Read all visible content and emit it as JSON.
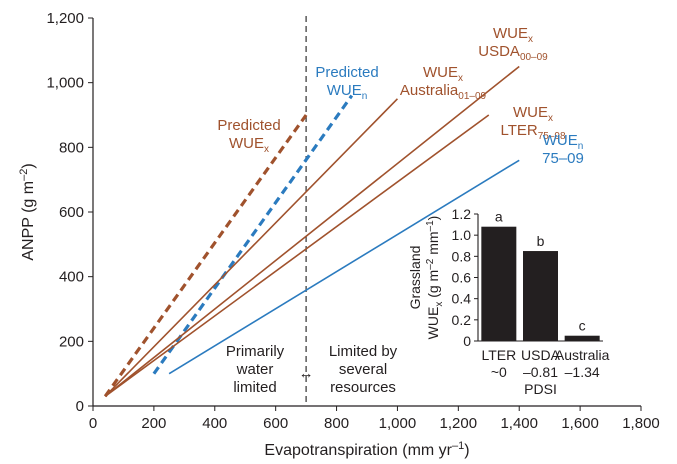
{
  "chart_data": [
    {
      "type": "line",
      "xlabel": "Evapotranspiration (mm yr",
      "xlabel_sup": "–1",
      "xlabel_end": ")",
      "ylabel": "ANPP (g m",
      "ylabel_sup": "–2",
      "ylabel_end": ")",
      "xlim": [
        0,
        1800
      ],
      "ylim": [
        0,
        1200
      ],
      "x_ticks": [
        0,
        200,
        400,
        600,
        800,
        1000,
        1200,
        1400,
        1600,
        1800
      ],
      "x_tick_labels": [
        "0",
        "200",
        "400",
        "600",
        "800",
        "1,000",
        "1,200",
        "1,400",
        "1,600",
        "1,800"
      ],
      "y_ticks": [
        0,
        200,
        400,
        600,
        800,
        1000,
        1200
      ],
      "y_tick_labels": [
        "0",
        "200",
        "400",
        "600",
        "800",
        "1,000",
        "1,200"
      ],
      "grid": false,
      "divider": {
        "x": 700,
        "left_label": [
          "Primarily",
          "water",
          "limited"
        ],
        "right_label": [
          "Limited by",
          "several",
          "resources"
        ],
        "arrow": "↔"
      },
      "series": [
        {
          "id": "pred-wuex",
          "style": "dashed",
          "color": "#a0522d",
          "points": [
            [
              40,
              30
            ],
            [
              700,
              900
            ]
          ]
        },
        {
          "id": "pred-wuen",
          "style": "dashed",
          "color": "#2b7bbf",
          "points": [
            [
              200,
              100
            ],
            [
              850,
              960
            ]
          ]
        },
        {
          "id": "aus",
          "style": "solid",
          "color": "#a0522d",
          "points": [
            [
              40,
              30
            ],
            [
              1000,
              950
            ]
          ]
        },
        {
          "id": "usda",
          "style": "solid",
          "color": "#a0522d",
          "points": [
            [
              40,
              30
            ],
            [
              1400,
              1050
            ]
          ]
        },
        {
          "id": "lter",
          "style": "solid",
          "color": "#a0522d",
          "points": [
            [
              40,
              30
            ],
            [
              1300,
              900
            ]
          ]
        },
        {
          "id": "wuen",
          "style": "solid",
          "color": "#2b7bbf",
          "points": [
            [
              250,
              100
            ],
            [
              1400,
              760
            ]
          ]
        }
      ],
      "annotations": [
        {
          "id": "pred-wuex-label",
          "color": "#a0522d",
          "lines": [
            {
              "text": "Predicted"
            },
            {
              "text": "WUE",
              "sub": "x"
            }
          ]
        },
        {
          "id": "pred-wuen-label",
          "color": "#2b7bbf",
          "lines": [
            {
              "text": "Predicted"
            },
            {
              "text": "WUE",
              "sub": "n"
            }
          ]
        },
        {
          "id": "aus-label",
          "color": "#a0522d",
          "lines": [
            {
              "text": "WUE",
              "sub": "x"
            },
            {
              "text": "Australia",
              "sub": "01–09"
            }
          ]
        },
        {
          "id": "usda-label",
          "color": "#a0522d",
          "lines": [
            {
              "text": "WUE",
              "sub": "x"
            },
            {
              "text": "USDA",
              "sub": "00–09"
            }
          ]
        },
        {
          "id": "lter-label",
          "color": "#a0522d",
          "lines": [
            {
              "text": "WUE",
              "sub": "x"
            },
            {
              "text": "LTER",
              "sub": "75–98"
            }
          ]
        },
        {
          "id": "wuen-label",
          "color": "#2b7bbf",
          "lines": [
            {
              "text": "WUE",
              "sub": "n"
            },
            {
              "text": "75–09"
            }
          ]
        }
      ]
    },
    {
      "type": "bar",
      "ylabel_line1": "Grassland",
      "ylabel_line2": "WUE",
      "ylabel_line2_sub": "x",
      "ylabel_line2_rest": " (g m",
      "ylabel_line2_sup1": "–2",
      "ylabel_line2_mid": " mm",
      "ylabel_line2_sup2": "–1",
      "ylabel_line2_end": ")",
      "ylim": [
        0,
        1.2
      ],
      "y_ticks": [
        0,
        0.2,
        0.4,
        0.6,
        0.8,
        1.0,
        1.2
      ],
      "y_tick_labels": [
        "0",
        "0.2",
        "0.4",
        "0.6",
        "0.8",
        "1.0",
        "1.2"
      ],
      "bar_color": "#231f20",
      "categories": [
        {
          "name": "LTER",
          "pdsi": "~0",
          "value": 1.08,
          "letter": "a"
        },
        {
          "name": "USDA",
          "pdsi": "–0.81",
          "value": 0.85,
          "letter": "b"
        },
        {
          "name": "Australia",
          "pdsi": "–1.34",
          "value": 0.05,
          "letter": "c"
        }
      ],
      "xlabel": "PDSI"
    }
  ]
}
